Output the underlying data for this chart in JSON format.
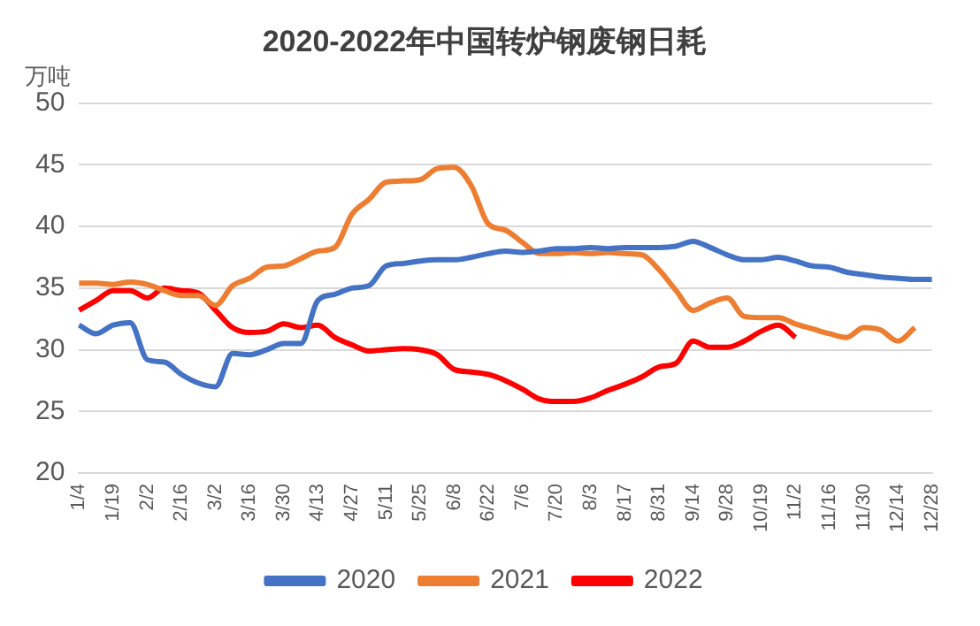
{
  "chart_data": {
    "type": "line",
    "title": "2020-2022年中国转炉钢废钢日耗",
    "ylabel": "万吨",
    "categories": [
      "1/4",
      null,
      "1/19",
      null,
      "2/2",
      null,
      "2/16",
      null,
      "3/2",
      null,
      "3/16",
      null,
      "3/30",
      null,
      "4/13",
      null,
      "4/27",
      null,
      "5/11",
      null,
      "5/25",
      null,
      "6/8",
      null,
      "6/22",
      null,
      "7/6",
      null,
      "7/20",
      null,
      "8/3",
      null,
      "8/17",
      null,
      "8/31",
      null,
      "9/14",
      null,
      "9/28",
      null,
      "10/19",
      null,
      "11/2",
      null,
      "11/16",
      null,
      "11/30",
      null,
      "12/14",
      null,
      "12/28"
    ],
    "series": [
      {
        "name": "2020",
        "color": "#4472c4",
        "values": [
          32,
          31.3,
          32,
          32.2,
          29.2,
          29,
          28,
          27.3,
          27,
          29.7,
          29.6,
          30,
          30.5,
          30.5,
          34,
          34.5,
          35,
          35.2,
          36.8,
          37,
          37.2,
          37.3,
          37.3,
          37.5,
          37.8,
          38,
          37.9,
          38,
          38.2,
          38.2,
          38.3,
          38.2,
          38.3,
          38.3,
          38.3,
          38.4,
          38.8,
          38.3,
          37.7,
          37.3,
          37.3,
          37.5,
          37.2,
          36.8,
          36.7,
          36.3,
          36.1,
          35.9,
          35.8,
          35.7,
          35.7
        ]
      },
      {
        "name": "2021",
        "color": "#ed7d31",
        "values": [
          35.4,
          35.4,
          35.3,
          35.5,
          35.3,
          34.8,
          34.4,
          34.4,
          33.6,
          35.2,
          35.8,
          36.7,
          36.8,
          37.4,
          38,
          38.3,
          41,
          42.2,
          43.6,
          43.7,
          43.8,
          44.7,
          44.8,
          43.3,
          40.2,
          39.7,
          38.7,
          37.8,
          37.8,
          37.9,
          37.8,
          37.9,
          37.8,
          37.7,
          36.5,
          34.8,
          33.2,
          33.8,
          34.2,
          32.7,
          32.6,
          32.6,
          32.1,
          31.7,
          31.3,
          31,
          31.8,
          31.6,
          30.7,
          31.8,
          null
        ]
      },
      {
        "name": "2022",
        "color": "#ff0000",
        "values": [
          33.2,
          34,
          34.8,
          34.8,
          34.2,
          35,
          34.8,
          34.6,
          33.2,
          31.8,
          31.4,
          31.5,
          32.1,
          31.8,
          32,
          31,
          30.4,
          29.9,
          30,
          30.1,
          30,
          29.6,
          28.4,
          28.2,
          28,
          27.5,
          26.8,
          26,
          25.8,
          25.8,
          26.1,
          26.7,
          27.2,
          27.8,
          28.6,
          28.9,
          30.7,
          30.2,
          30.2,
          30.7,
          31.5,
          32,
          31,
          null,
          null,
          null,
          null,
          null,
          null,
          null,
          null
        ]
      }
    ],
    "ylim": [
      20,
      50
    ],
    "yticks": [
      20,
      25,
      30,
      35,
      40,
      45,
      50
    ],
    "grid": "y",
    "legend": "bottom",
    "marker": "none",
    "line_style": "solid"
  }
}
